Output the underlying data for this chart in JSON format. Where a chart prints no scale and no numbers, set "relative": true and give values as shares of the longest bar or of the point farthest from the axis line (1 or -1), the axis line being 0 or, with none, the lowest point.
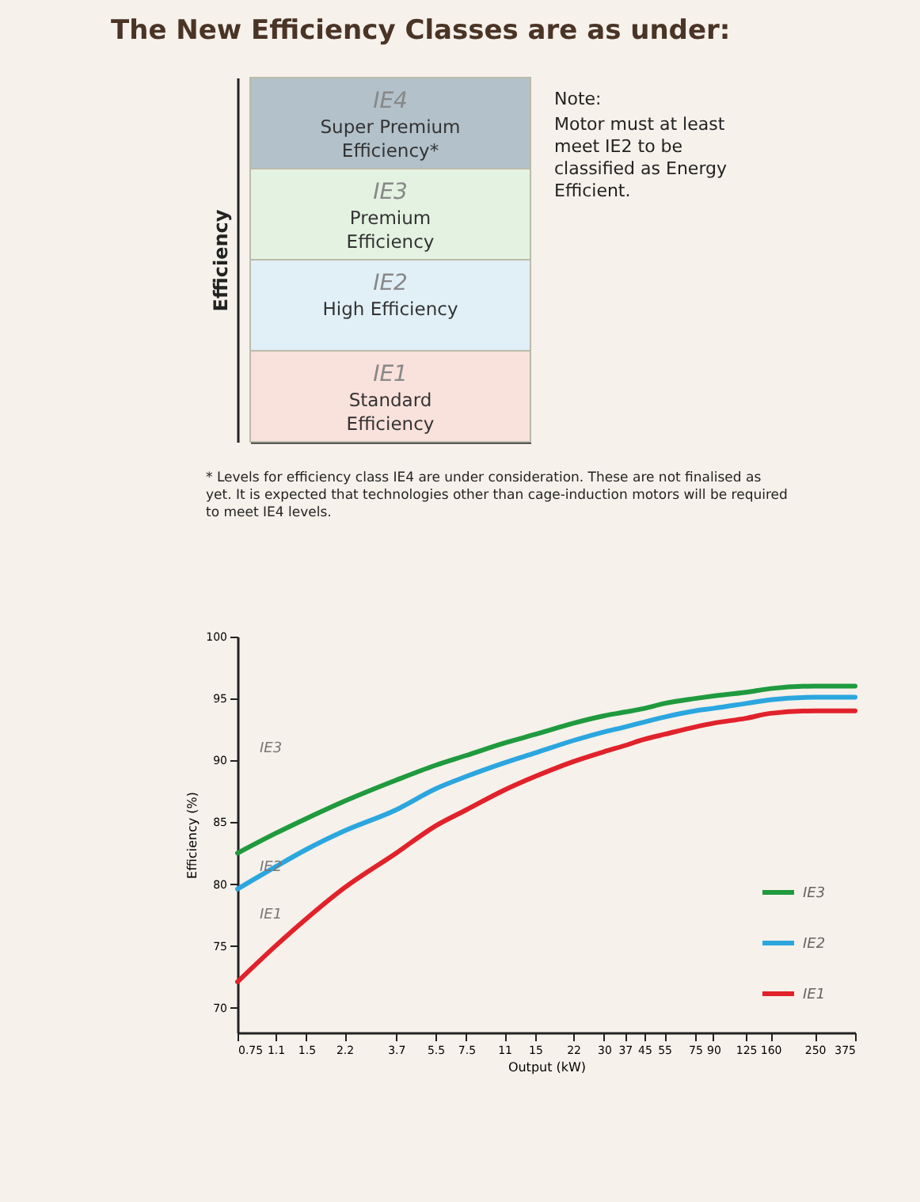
{
  "chart_data": [
    {
      "type": "bar",
      "title": "The New Efficiency Classes are as under:",
      "ylabel": "Efficiency",
      "stacked": true,
      "relative": true,
      "categories": [
        null
      ],
      "series": [
        {
          "name": "IE1 Standard Efficiency",
          "color": "#f9e1dc",
          "values": [
            0.25
          ]
        },
        {
          "name": "IE2 High Efficiency",
          "color": "#e1f0f7",
          "values": [
            0.25
          ]
        },
        {
          "name": "IE3 Premium Efficiency",
          "color": "#e4f2e1",
          "values": [
            0.25
          ]
        },
        {
          "name": "IE4 Super Premium Efficiency*",
          "color": "#b2c1ca",
          "values": [
            0.25
          ]
        }
      ],
      "annotations": [
        "Note:",
        "Motor must at least meet IE2 to be classified as Energy Efficient.",
        "* Levels for efficiency class IE4 are under consideration. These are not finalised as yet. It is expected that technologies other than cage-induction motors will be required to meet IE4 levels."
      ]
    },
    {
      "type": "line",
      "xlabel": "Output (kW)",
      "ylabel": "Efficiency (%)",
      "log": "x",
      "x": [
        0.75,
        1.1,
        1.5,
        2.2,
        3.7,
        5.5,
        7.5,
        11,
        15,
        22,
        30,
        37,
        45,
        55,
        75,
        90,
        125,
        160,
        250,
        375
      ],
      "xlim": [
        0.75,
        375
      ],
      "xticks": [
        0.75,
        1.1,
        1.5,
        2.2,
        3.7,
        5.5,
        7.5,
        11,
        15,
        22,
        30,
        37,
        45,
        55,
        75,
        90,
        125,
        160,
        250,
        375
      ],
      "ylim": [
        68,
        100
      ],
      "yticks": [
        70,
        75,
        80,
        85,
        90,
        95,
        100
      ],
      "series": [
        {
          "name": "IE3",
          "color": "#1f9a3e",
          "values": [
            82.5,
            84.1,
            85.3,
            86.7,
            88.4,
            89.6,
            90.4,
            91.4,
            92.1,
            93.0,
            93.6,
            93.9,
            94.2,
            94.6,
            95.0,
            95.2,
            95.5,
            95.8,
            96.0,
            96.0
          ]
        },
        {
          "name": "IE2",
          "color": "#2ba6df",
          "values": [
            79.6,
            81.4,
            82.8,
            84.3,
            86.0,
            87.7,
            88.7,
            89.8,
            90.6,
            91.6,
            92.3,
            92.7,
            93.1,
            93.5,
            94.0,
            94.2,
            94.6,
            94.9,
            95.1,
            95.1
          ]
        },
        {
          "name": "IE1",
          "color": "#e1222b",
          "values": [
            72.1,
            75.0,
            77.2,
            79.7,
            82.5,
            84.7,
            86.0,
            87.6,
            88.7,
            89.9,
            90.7,
            91.2,
            91.7,
            92.1,
            92.7,
            93.0,
            93.4,
            93.8,
            94.0,
            94.0
          ]
        }
      ],
      "annotations": [
        "IE3",
        "IE2",
        "IE1"
      ],
      "legend": "bottom right",
      "marker": "none",
      "line_style": "solid",
      "grid": false
    }
  ]
}
